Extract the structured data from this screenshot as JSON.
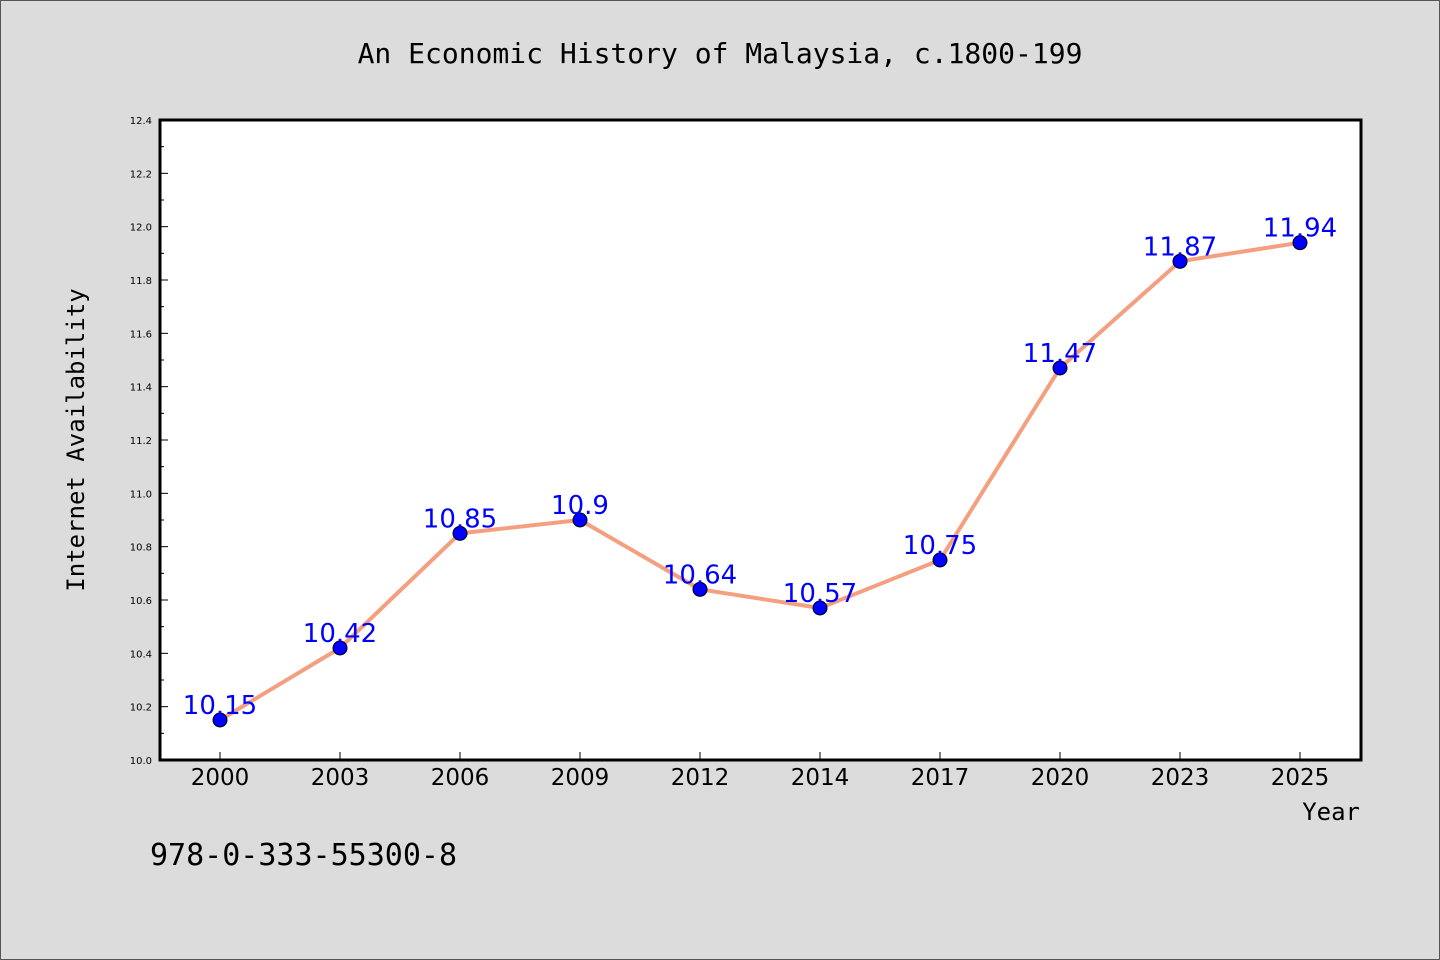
{
  "chart_data": {
    "type": "line",
    "title": "An Economic History of Malaysia, c.1800-199",
    "xlabel": "Year",
    "ylabel": "Internet Availability",
    "categories": [
      "2000",
      "2003",
      "2006",
      "2009",
      "2012",
      "2014",
      "2017",
      "2020",
      "2023",
      "2025"
    ],
    "values": [
      10.15,
      10.42,
      10.85,
      10.9,
      10.64,
      10.57,
      10.75,
      11.47,
      11.87,
      11.94
    ],
    "data_labels": [
      "10.15",
      "10.42",
      "10.85",
      "10.9",
      "10.64",
      "10.57",
      "10.75",
      "11.47",
      "11.87",
      "11.94"
    ],
    "ylim": [
      10.0,
      12.4
    ],
    "yticks": [
      "10.0",
      "10.2",
      "10.4",
      "10.6",
      "10.8",
      "11.0",
      "11.2",
      "11.4",
      "11.6",
      "11.8",
      "12.0",
      "12.2",
      "12.4"
    ],
    "grid": false,
    "legend": "none",
    "colors": {
      "line": "#f4a080",
      "marker": "#0000ff",
      "data_label": "#0000ff",
      "background": "#dcdcdc",
      "plot_background": "#ffffff"
    }
  },
  "footer": {
    "isbn": "978-0-333-55300-8"
  }
}
